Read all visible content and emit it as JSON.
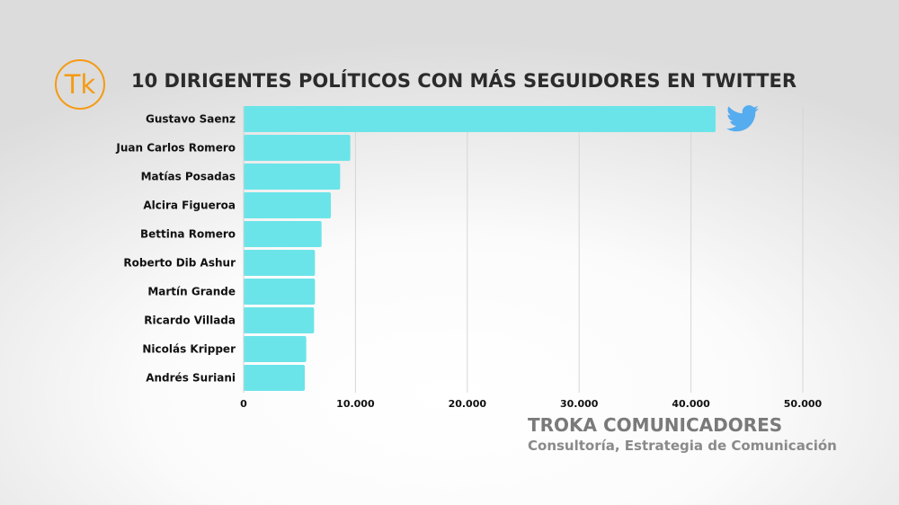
{
  "logo_text": "Tk",
  "chart_data": {
    "type": "bar",
    "orientation": "horizontal",
    "title": "10 DIRIGENTES POLÍTICOS CON MÁS SEGUIDORES EN TWITTER",
    "categories": [
      "Gustavo Saenz",
      "Juan Carlos Romero",
      "Matías Posadas",
      "Alcira Figueroa",
      "Bettina Romero",
      "Roberto Dib Ashur",
      "Martín Grande",
      "Ricardo Villada",
      "Nicolás Kripper",
      "Andrés Suriani"
    ],
    "values": [
      42200,
      9540,
      8630,
      7800,
      6970,
      6380,
      6380,
      6300,
      5600,
      5470
    ],
    "xlim": [
      0,
      50000
    ],
    "xticks": [
      0,
      10000,
      20000,
      30000,
      40000,
      50000
    ],
    "xtick_labels": [
      "0",
      "10.000",
      "20.000",
      "30.000",
      "40.000",
      "50.000"
    ],
    "grid": true,
    "bar_color": "#6be4e9",
    "xlabel": "",
    "ylabel": ""
  },
  "icon": "twitter-bird-icon",
  "twitter_color": "#55acee",
  "footer": {
    "brand": "TROKA COMUNICADORES",
    "tagline": "Consultoría, Estrategia de Comunicación"
  }
}
